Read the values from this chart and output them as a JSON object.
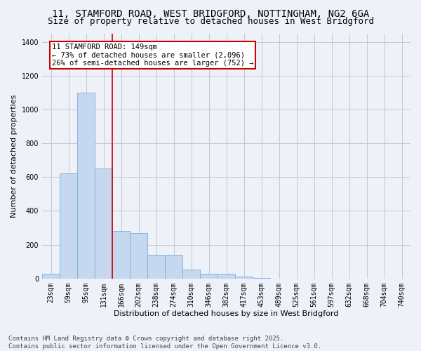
{
  "title_line1": "11, STAMFORD ROAD, WEST BRIDGFORD, NOTTINGHAM, NG2 6GA",
  "title_line2": "Size of property relative to detached houses in West Bridgford",
  "xlabel": "Distribution of detached houses by size in West Bridgford",
  "ylabel": "Number of detached properties",
  "categories": [
    "23sqm",
    "59sqm",
    "95sqm",
    "131sqm",
    "166sqm",
    "202sqm",
    "238sqm",
    "274sqm",
    "310sqm",
    "346sqm",
    "382sqm",
    "417sqm",
    "453sqm",
    "489sqm",
    "525sqm",
    "561sqm",
    "597sqm",
    "632sqm",
    "668sqm",
    "704sqm",
    "740sqm"
  ],
  "values": [
    30,
    620,
    1100,
    650,
    280,
    270,
    140,
    140,
    55,
    30,
    30,
    10,
    2,
    0,
    0,
    0,
    0,
    0,
    0,
    0,
    0
  ],
  "bar_color": "#c5d8f0",
  "bar_edge_color": "#7aabda",
  "bar_width": 1.0,
  "vline_x": 3.5,
  "annotation_text": "11 STAMFORD ROAD: 149sqm\n← 73% of detached houses are smaller (2,096)\n26% of semi-detached houses are larger (752) →",
  "annotation_box_color": "#ffffff",
  "annotation_box_edge": "#cc0000",
  "vline_color": "#cc0000",
  "ylim": [
    0,
    1450
  ],
  "yticks": [
    0,
    200,
    400,
    600,
    800,
    1000,
    1200,
    1400
  ],
  "grid_color": "#c0c8d8",
  "bg_color": "#eef2f8",
  "footer_line1": "Contains HM Land Registry data © Crown copyright and database right 2025.",
  "footer_line2": "Contains public sector information licensed under the Open Government Licence v3.0.",
  "title_fontsize": 10,
  "subtitle_fontsize": 9,
  "axis_label_fontsize": 8,
  "tick_fontsize": 7,
  "footer_fontsize": 6.5,
  "annotation_fontsize": 7.5
}
